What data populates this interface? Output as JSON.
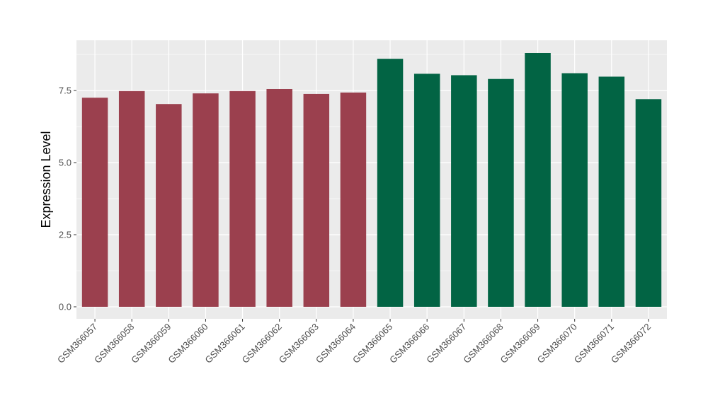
{
  "chart_data": {
    "type": "bar",
    "title": "",
    "xlabel": "",
    "ylabel": "Expression Level",
    "ylim": [
      0,
      9.2
    ],
    "yticks": [
      0.0,
      2.5,
      5.0,
      7.5
    ],
    "ytick_labels": [
      "0.0",
      "2.5",
      "5.0",
      "7.5"
    ],
    "grid": true,
    "legend": "none",
    "categories": [
      "GSM366057",
      "GSM366058",
      "GSM366059",
      "GSM366060",
      "GSM366061",
      "GSM366062",
      "GSM366063",
      "GSM366064",
      "GSM366065",
      "GSM366066",
      "GSM366067",
      "GSM366068",
      "GSM366069",
      "GSM366070",
      "GSM366071",
      "GSM366072"
    ],
    "values": [
      7.25,
      7.48,
      7.03,
      7.4,
      7.48,
      7.55,
      7.38,
      7.43,
      8.6,
      8.08,
      8.03,
      7.9,
      8.8,
      8.1,
      7.98,
      7.2
    ],
    "groups": [
      0,
      0,
      0,
      0,
      0,
      0,
      0,
      0,
      1,
      1,
      1,
      1,
      1,
      1,
      1,
      1
    ],
    "group_colors": [
      "#9b404e",
      "#026444"
    ],
    "panel_background": "#ebebeb",
    "grid_color": "#ffffff"
  }
}
